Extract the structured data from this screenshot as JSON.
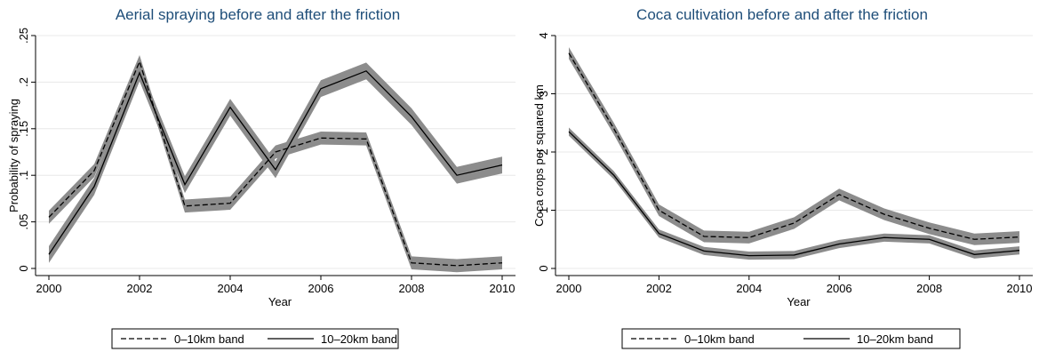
{
  "colors": {
    "title": "#1f4e79",
    "band": "#8c8c8c",
    "line": "#000000",
    "grid": "#e8e8e8",
    "background": "#ffffff"
  },
  "legend": {
    "dashed_label": "0–10km band",
    "solid_label": "10–20km band"
  },
  "chart_data": [
    {
      "type": "line",
      "title": "Aerial spraying before and after the friction",
      "xlabel": "Year",
      "ylabel": "Probability of spraying",
      "xlim": [
        2000,
        2010
      ],
      "ylim": [
        0,
        0.25
      ],
      "x_ticks": [
        2000,
        2002,
        2004,
        2006,
        2008,
        2010
      ],
      "x_tick_labels": [
        "2000",
        "2002",
        "2004",
        "2006",
        "2008",
        "2010"
      ],
      "y_ticks": [
        0,
        0.05,
        0.1,
        0.15,
        0.2,
        0.25
      ],
      "y_tick_labels": [
        "0",
        ".05",
        ".1",
        ".15",
        ".2",
        ".25"
      ],
      "grid": true,
      "legend_position": "bottom",
      "x": [
        2000,
        2001,
        2002,
        2003,
        2004,
        2005,
        2006,
        2007,
        2008,
        2009,
        2010
      ],
      "series": [
        {
          "name": "0–10km band",
          "style": "dashed",
          "band_halfwidth": 0.007,
          "values": [
            0.055,
            0.105,
            0.222,
            0.067,
            0.07,
            0.125,
            0.14,
            0.139,
            0.006,
            0.003,
            0.006
          ]
        },
        {
          "name": "10–20km band",
          "style": "solid",
          "band_halfwidth": 0.009,
          "values": [
            0.015,
            0.088,
            0.21,
            0.09,
            0.173,
            0.106,
            0.193,
            0.212,
            0.163,
            0.1,
            0.111
          ]
        }
      ]
    },
    {
      "type": "line",
      "title": "Coca cultivation before and after the friction",
      "xlabel": "Year",
      "ylabel": "Coca crops per squared km",
      "xlim": [
        2000,
        2010
      ],
      "ylim": [
        0,
        4
      ],
      "x_ticks": [
        2000,
        2002,
        2004,
        2006,
        2008,
        2010
      ],
      "x_tick_labels": [
        "2000",
        "2002",
        "2004",
        "2006",
        "2008",
        "2010"
      ],
      "y_ticks": [
        0,
        1,
        2,
        3,
        4
      ],
      "y_tick_labels": [
        "0",
        "1",
        "2",
        "3",
        "4"
      ],
      "grid": true,
      "legend_position": "bottom",
      "x": [
        2000,
        2001,
        2002,
        2003,
        2004,
        2005,
        2006,
        2007,
        2008,
        2009,
        2010
      ],
      "series": [
        {
          "name": "0–10km band",
          "style": "dashed",
          "band_halfwidth": 0.1,
          "values": [
            3.7,
            2.4,
            1.0,
            0.55,
            0.53,
            0.78,
            1.27,
            0.93,
            0.69,
            0.5,
            0.54
          ]
        },
        {
          "name": "10–20km band",
          "style": "solid",
          "band_halfwidth": 0.07,
          "values": [
            2.35,
            1.6,
            0.6,
            0.3,
            0.22,
            0.23,
            0.42,
            0.53,
            0.5,
            0.24,
            0.31
          ]
        }
      ]
    }
  ]
}
